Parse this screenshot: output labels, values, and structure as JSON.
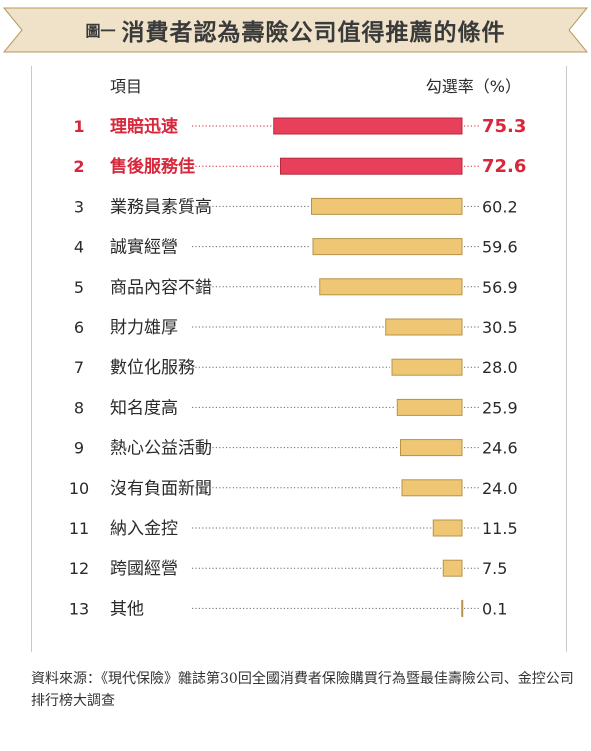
{
  "header": {
    "figure_label": "圖一",
    "title": "消費者認為壽險公司值得推薦的條件"
  },
  "colors": {
    "highlight_bar": "#e8405a",
    "highlight_text": "#d8263b",
    "normal_bar": "#efc774",
    "normal_bar_stroke": "#b7924a",
    "banner": "#efe2c8",
    "banner_edge": "#b79a5c"
  },
  "chart_data": {
    "type": "bar",
    "orientation": "horizontal",
    "xlabel": "項目",
    "ylabel": "勾選率（%）",
    "xlim": [
      0,
      100
    ],
    "categories": [
      "理賠迅速",
      "售後服務佳",
      "業務員素質高",
      "誠實經營",
      "商品內容不錯",
      "財力雄厚",
      "數位化服務",
      "知名度高",
      "熱心公益活動",
      "沒有負面新聞",
      "納入金控",
      "跨國經營",
      "其他"
    ],
    "ranks": [
      "1",
      "2",
      "3",
      "4",
      "5",
      "6",
      "7",
      "8",
      "9",
      "10",
      "11",
      "12",
      "13"
    ],
    "values": [
      75.3,
      72.6,
      60.2,
      59.6,
      56.9,
      30.5,
      28.0,
      25.9,
      24.6,
      24.0,
      11.5,
      7.5,
      0.1
    ],
    "value_labels": [
      "75.3",
      "72.6",
      "60.2",
      "59.6",
      "56.9",
      "30.5",
      "28.0",
      "25.9",
      "24.6",
      "24.0",
      "11.5",
      "7.5",
      "0.1"
    ],
    "highlighted_ranks": [
      1,
      2
    ]
  },
  "footer": {
    "source": "資料來源：《現代保險》雜誌第30回全國消費者保險購買行為暨最佳壽險公司、金控公司排行榜大調查"
  }
}
